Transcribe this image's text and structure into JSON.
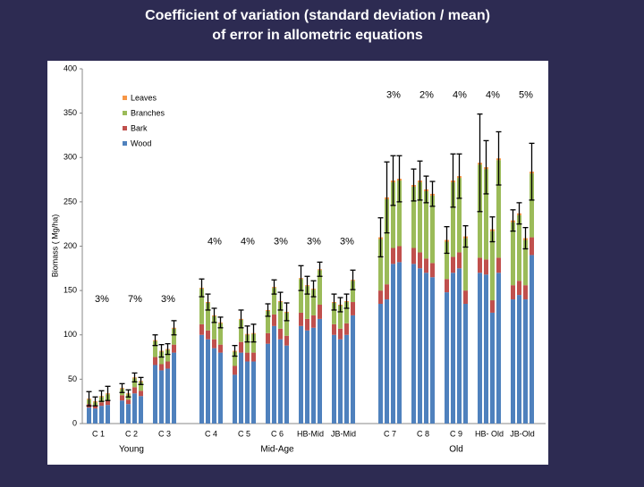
{
  "chart_data": {
    "type": "bar",
    "stacked": true,
    "title": [
      "Coefficient of variation (standard deviation / mean)",
      "of error in allometric equations"
    ],
    "y_label": "Biomass ( Mg/ha)",
    "ylim": [
      0,
      400
    ],
    "yticks": [
      0,
      50,
      100,
      150,
      200,
      250,
      300,
      350,
      400
    ],
    "grid": false,
    "legend": "upper left",
    "groups": [
      {
        "label": "Young",
        "categories": [
          "C 1",
          "C 2",
          "C 3"
        ]
      },
      {
        "label": "Mid-Age",
        "categories": [
          "C 4",
          "C 5",
          "C 6",
          "HB-Mid",
          "JB-Mid"
        ]
      },
      {
        "label": "Old",
        "categories": [
          "C 7",
          "C 8",
          "C 9",
          "HB- Old",
          "JB-Old"
        ]
      }
    ],
    "cv_labels": [
      "3%",
      "7%",
      "3%",
      "4%",
      "4%",
      "3%",
      "3%",
      "3%",
      "3%",
      "2%",
      "4%",
      "4%",
      "5%"
    ],
    "series": [
      {
        "name": "Leaves",
        "color": "#f79646",
        "values": [
          [
            1,
            1,
            1,
            1
          ],
          [
            1,
            1,
            1,
            1
          ],
          [
            1,
            1,
            1,
            1
          ],
          [
            1,
            1,
            1,
            1
          ],
          [
            1,
            1,
            1,
            1
          ],
          [
            1,
            1,
            1,
            1
          ],
          [
            1,
            1,
            1,
            1
          ],
          [
            1,
            1,
            1,
            1
          ],
          [
            2,
            2,
            2,
            2
          ],
          [
            2,
            2,
            2,
            2
          ],
          [
            2,
            2,
            2,
            2
          ],
          [
            2,
            2,
            2,
            2
          ],
          [
            2,
            2,
            2,
            2
          ]
        ]
      },
      {
        "name": "Branches",
        "color": "#9bbb59",
        "values": [
          [
            5,
            4,
            6,
            7
          ],
          [
            7,
            6,
            10,
            10
          ],
          [
            18,
            14,
            13,
            18
          ],
          [
            40,
            31,
            26,
            24
          ],
          [
            16,
            25,
            20,
            21
          ],
          [
            25,
            30,
            30,
            26
          ],
          [
            38,
            37,
            29,
            39
          ],
          [
            24,
            26,
            24,
            24
          ],
          [
            58,
            96,
            74,
            74
          ],
          [
            69,
            79,
            76,
            76
          ],
          [
            42,
            84,
            84,
            59
          ],
          [
            105,
            102,
            78,
            110
          ],
          [
            71,
            74,
            51,
            72
          ]
        ]
      },
      {
        "name": "Bark",
        "color": "#c0504d",
        "values": [
          [
            4,
            3,
            4,
            5
          ],
          [
            6,
            5,
            7,
            6
          ],
          [
            9,
            7,
            8,
            9
          ],
          [
            12,
            10,
            10,
            9
          ],
          [
            10,
            12,
            10,
            10
          ],
          [
            12,
            13,
            12,
            11
          ],
          [
            15,
            13,
            14,
            16
          ],
          [
            12,
            12,
            13,
            15
          ],
          [
            15,
            17,
            18,
            18
          ],
          [
            18,
            18,
            16,
            16
          ],
          [
            15,
            18,
            18,
            15
          ],
          [
            17,
            17,
            14,
            17
          ],
          [
            16,
            16,
            16,
            20
          ]
        ]
      },
      {
        "name": "Wood",
        "color": "#4f81bd",
        "values": [
          [
            18,
            17,
            20,
            21
          ],
          [
            26,
            22,
            34,
            31
          ],
          [
            66,
            60,
            62,
            80
          ],
          [
            100,
            95,
            85,
            80
          ],
          [
            55,
            80,
            70,
            70
          ],
          [
            90,
            110,
            95,
            88
          ],
          [
            110,
            105,
            108,
            118
          ],
          [
            100,
            95,
            100,
            122
          ],
          [
            135,
            140,
            180,
            182
          ],
          [
            180,
            175,
            170,
            165
          ],
          [
            148,
            170,
            175,
            135
          ],
          [
            170,
            168,
            125,
            170
          ],
          [
            140,
            145,
            140,
            190
          ]
        ]
      }
    ],
    "errors": [
      [
        8,
        5,
        6,
        8
      ],
      [
        5,
        4,
        5,
        4
      ],
      [
        6,
        7,
        6,
        8
      ],
      [
        10,
        9,
        8,
        6
      ],
      [
        6,
        10,
        9,
        10
      ],
      [
        7,
        8,
        10,
        10
      ],
      [
        14,
        10,
        9,
        8
      ],
      [
        9,
        8,
        8,
        11
      ],
      [
        22,
        40,
        28,
        26
      ],
      [
        18,
        22,
        15,
        14
      ],
      [
        15,
        30,
        25,
        12
      ],
      [
        55,
        30,
        14,
        30
      ],
      [
        12,
        12,
        12,
        32
      ]
    ]
  }
}
